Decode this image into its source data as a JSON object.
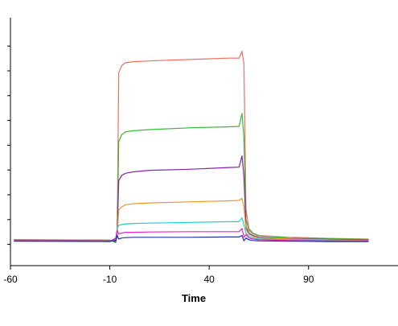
{
  "chart_data": {
    "type": "line",
    "title": "",
    "xlabel": "Time",
    "ylabel": "",
    "xlim": [
      -60,
      135
    ],
    "ylim": [
      -6,
      64
    ],
    "x_ticks": [
      -60,
      -10,
      40,
      90
    ],
    "x_tick_labels": [
      "-60",
      "-10",
      "40",
      "90"
    ],
    "y_ticks": [
      0,
      7,
      14,
      21,
      28,
      35,
      42,
      49,
      56
    ],
    "y_tick_labels": [
      "",
      "",
      "",
      "",
      "",
      "",
      "",
      "",
      ""
    ],
    "grid": false,
    "legend": "none",
    "series": [
      {
        "color": "#f07060",
        "x": [
          -58,
          -10,
          -7,
          -6.3,
          -5.5,
          -4,
          -2,
          2,
          10,
          30,
          50,
          55,
          56.5,
          57.5,
          58.5,
          60,
          62,
          65,
          80,
          100,
          120
        ],
        "y": [
          1.3,
          1.2,
          1.0,
          3.0,
          48.5,
          50.5,
          51.3,
          51.6,
          51.8,
          52.2,
          52.6,
          52.6,
          54.5,
          51.0,
          10.0,
          4.5,
          3.2,
          2.5,
          2.0,
          1.7,
          1.5
        ]
      },
      {
        "color": "#33bb33",
        "x": [
          -58,
          -10,
          -7,
          -6.3,
          -5.5,
          -4,
          -2,
          2,
          10,
          30,
          50,
          55,
          56.5,
          57.5,
          58.5,
          60,
          62,
          65,
          80,
          100,
          120
        ],
        "y": [
          1.3,
          1.2,
          0.5,
          2.5,
          29.0,
          31.0,
          31.8,
          32.1,
          32.4,
          32.9,
          33.2,
          33.3,
          37.0,
          30.0,
          7.0,
          4.0,
          3.0,
          2.4,
          1.9,
          1.6,
          1.4
        ]
      },
      {
        "color": "#8822aa",
        "x": [
          -58,
          -10,
          -7,
          -6.3,
          -5.5,
          -4,
          -2,
          2,
          10,
          30,
          50,
          55,
          56.5,
          57.5,
          58.5,
          60,
          62,
          65,
          80,
          100,
          120
        ],
        "y": [
          1.2,
          1.1,
          0.8,
          2.2,
          18.0,
          19.5,
          20.1,
          20.5,
          20.9,
          21.2,
          21.7,
          21.8,
          25.0,
          19.0,
          5.0,
          3.2,
          2.5,
          2.0,
          1.6,
          1.4,
          1.2
        ]
      },
      {
        "color": "#ee9922",
        "x": [
          -58,
          -10,
          -7,
          -6.3,
          -5.5,
          -4,
          -2,
          2,
          10,
          30,
          50,
          55,
          56.5,
          57.5,
          58.5,
          60,
          62,
          65,
          80,
          100,
          120
        ],
        "y": [
          1.1,
          1.0,
          1.4,
          2.6,
          9.8,
          10.6,
          11.2,
          11.5,
          11.7,
          12.0,
          12.3,
          12.4,
          13.0,
          10.5,
          4.2,
          2.8,
          2.2,
          1.8,
          1.5,
          1.3,
          1.1
        ]
      },
      {
        "color": "#22cccc",
        "x": [
          -58,
          -10,
          -7,
          -6.3,
          -5.5,
          -4,
          -2,
          2,
          10,
          30,
          50,
          55,
          56.5,
          57.5,
          58.5,
          60,
          62,
          65,
          80,
          100,
          120
        ],
        "y": [
          1.0,
          0.9,
          1.6,
          4.5,
          5.4,
          5.6,
          5.8,
          5.9,
          6.0,
          6.2,
          6.4,
          6.4,
          7.5,
          5.5,
          3.2,
          2.2,
          1.8,
          1.5,
          1.3,
          1.1,
          1.0
        ]
      },
      {
        "color": "#ee22cc",
        "x": [
          -58,
          -10,
          -7,
          -6.3,
          -5.5,
          -4,
          -2,
          2,
          10,
          30,
          50,
          55,
          56.5,
          57.5,
          58.5,
          60,
          62,
          65,
          80,
          100,
          120
        ],
        "y": [
          1.0,
          0.9,
          1.8,
          4.0,
          3.0,
          3.2,
          3.4,
          3.4,
          3.5,
          3.6,
          3.6,
          3.6,
          4.5,
          2.0,
          2.8,
          1.8,
          1.5,
          1.3,
          1.1,
          1.0,
          1.0
        ]
      },
      {
        "color": "#2233aa",
        "x": [
          -58,
          -10,
          -7,
          -6.3,
          -5.5,
          -4,
          -2,
          2,
          10,
          30,
          50,
          55,
          56.5,
          57.5,
          58.5,
          60,
          62,
          65,
          80,
          100,
          120
        ],
        "y": [
          0.9,
          0.8,
          1.2,
          2.6,
          1.5,
          1.8,
          1.9,
          2.0,
          2.0,
          2.0,
          2.1,
          2.1,
          2.5,
          1.0,
          1.8,
          1.3,
          1.1,
          1.0,
          0.9,
          0.8,
          0.8
        ]
      }
    ]
  }
}
